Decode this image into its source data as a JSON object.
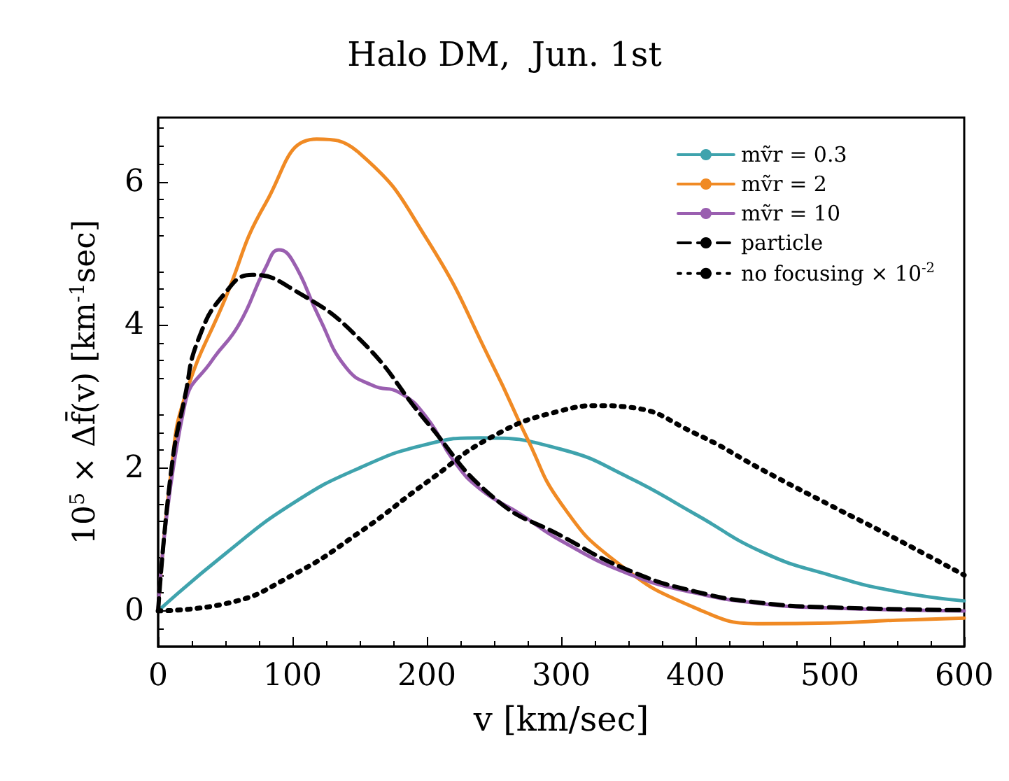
{
  "chart_data": {
    "type": "line",
    "title": "Halo DM,  Jun. 1st",
    "xlabel": "v [km/sec]",
    "ylabel": "10$^{5}$ × Δf̄(v) [km$^{-1}$sec]",
    "xlim": [
      0,
      600
    ],
    "xticks": [
      0,
      100,
      200,
      300,
      400,
      500,
      600
    ],
    "ylim": [
      -0.5,
      6.9
    ],
    "yticks": [
      0,
      2,
      4,
      6
    ],
    "grid": false,
    "legend": "top right",
    "marker": "none",
    "series": [
      {
        "name": "mṽr = 0.3",
        "color": "#3fa3ad",
        "line_style": "solid",
        "x": [
          0,
          50,
          100,
          150,
          200,
          240,
          300,
          350,
          400,
          450,
          500,
          550,
          600
        ],
        "values": [
          0,
          0.8,
          1.5,
          2.0,
          2.33,
          2.42,
          2.26,
          1.87,
          1.35,
          0.82,
          0.5,
          0.27,
          0.14
        ]
      },
      {
        "name": "mṽr = 2",
        "color": "#f08a24",
        "line_style": "solid",
        "x": [
          0,
          10,
          20,
          50,
          80,
          118,
          150,
          200,
          250,
          275,
          300,
          340,
          400,
          450,
          500,
          550,
          600
        ],
        "values": [
          0,
          2.0,
          3.0,
          4.37,
          5.7,
          6.6,
          6.4,
          5.2,
          3.4,
          2.4,
          1.5,
          0.7,
          0.04,
          -0.18,
          -0.17,
          -0.13,
          -0.1
        ]
      },
      {
        "name": "mṽr = 10",
        "color": "#9a5fb0",
        "line_style": "solid",
        "x": [
          0,
          20,
          40,
          60,
          80,
          90,
          100,
          120,
          140,
          160,
          180,
          200,
          220,
          240,
          270,
          300,
          350,
          400,
          450,
          500,
          600
        ],
        "values": [
          0,
          2.9,
          3.5,
          4.0,
          4.8,
          5.05,
          4.9,
          4.1,
          3.4,
          3.15,
          3.05,
          2.7,
          2.1,
          1.7,
          1.35,
          0.98,
          0.52,
          0.25,
          0.1,
          0.04,
          0.0
        ]
      },
      {
        "name": "particle",
        "color": "#000000",
        "line_style": "dashed",
        "x": [
          0,
          10,
          20,
          30,
          50,
          70,
          100,
          150,
          200,
          250,
          300,
          350,
          400,
          450,
          500,
          600
        ],
        "values": [
          0,
          2.0,
          3.0,
          3.8,
          4.45,
          4.7,
          4.5,
          3.8,
          2.64,
          1.58,
          1.05,
          0.57,
          0.27,
          0.11,
          0.05,
          0.01
        ]
      },
      {
        "name": "no focusing × 10$^{-2}$",
        "color": "#000000",
        "line_style": "dotted",
        "x": [
          0,
          50,
          100,
          150,
          200,
          250,
          300,
          330,
          350,
          400,
          450,
          500,
          550,
          600
        ],
        "values": [
          0,
          0.1,
          0.5,
          1.1,
          1.8,
          2.45,
          2.8,
          2.87,
          2.85,
          2.48,
          1.97,
          1.48,
          1.0,
          0.5
        ]
      }
    ]
  }
}
